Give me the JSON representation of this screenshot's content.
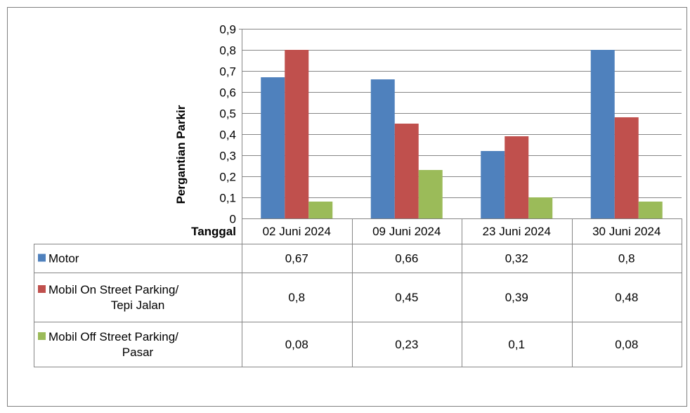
{
  "chart_data": {
    "type": "bar",
    "ylabel": "Pergantian Parkir",
    "xlabel": "Tanggal",
    "ylim": [
      0,
      0.9
    ],
    "yticks": [
      "0",
      "0,1",
      "0,2",
      "0,3",
      "0,4",
      "0,5",
      "0,6",
      "0,7",
      "0,8",
      "0,9"
    ],
    "grid": true,
    "legend": "data-table",
    "categories": [
      "02 Juni 2024",
      "09 Juni 2024",
      "23 Juni 2024",
      "30 Juni 2024"
    ],
    "series": [
      {
        "name": "Motor",
        "name_lines": [
          "Motor"
        ],
        "color": "#4F81BD",
        "values": [
          0.67,
          0.66,
          0.32,
          0.8
        ],
        "labels": [
          "0,67",
          "0,66",
          "0,32",
          "0,8"
        ]
      },
      {
        "name": "Mobil On Street Parking/ Tepi Jalan",
        "name_lines": [
          "Mobil On Street Parking/",
          "Tepi Jalan"
        ],
        "color": "#C0504D",
        "values": [
          0.8,
          0.45,
          0.39,
          0.48
        ],
        "labels": [
          "0,8",
          "0,45",
          "0,39",
          "0,48"
        ]
      },
      {
        "name": "Mobil Off Street Parking/ Pasar",
        "name_lines": [
          "Mobil Off Street Parking/",
          "Pasar"
        ],
        "color": "#9BBB59",
        "values": [
          0.08,
          0.23,
          0.1,
          0.08
        ],
        "labels": [
          "0,08",
          "0,23",
          "0,1",
          "0,08"
        ]
      }
    ]
  }
}
